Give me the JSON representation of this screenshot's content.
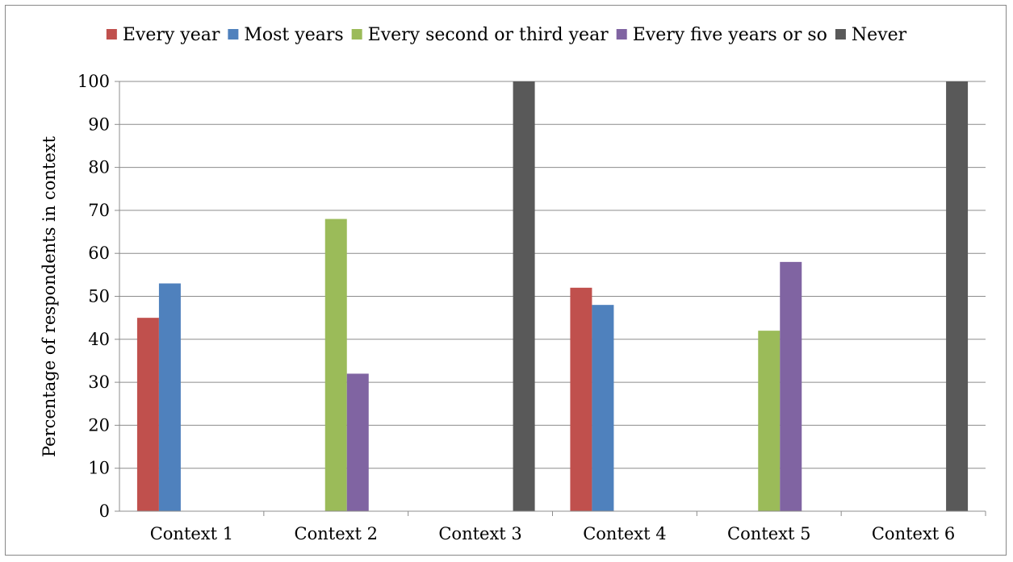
{
  "chart_data": {
    "type": "bar",
    "title": "",
    "xlabel": "",
    "ylabel": "Percentage of respondents in context",
    "ylim": [
      0,
      100
    ],
    "yticks": [
      0,
      10,
      20,
      30,
      40,
      50,
      60,
      70,
      80,
      90,
      100
    ],
    "grid": true,
    "legend_position": "top",
    "categories": [
      "Context 1",
      "Context 2",
      "Context 3",
      "Context 4",
      "Context 5",
      "Context 6"
    ],
    "series": [
      {
        "name": "Every year",
        "color": "#c0504d",
        "values": [
          45,
          0,
          0,
          52,
          0,
          0
        ]
      },
      {
        "name": "Most years",
        "color": "#4f81bd",
        "values": [
          53,
          0,
          0,
          48,
          0,
          0
        ]
      },
      {
        "name": "Every second or third year",
        "color": "#9bbb59",
        "values": [
          0,
          68,
          0,
          0,
          42,
          0
        ]
      },
      {
        "name": "Every five years or so",
        "color": "#8064a2",
        "values": [
          0,
          32,
          0,
          0,
          58,
          0
        ]
      },
      {
        "name": "Never",
        "color": "#595959",
        "values": [
          0,
          0,
          100,
          0,
          0,
          100
        ]
      }
    ]
  }
}
